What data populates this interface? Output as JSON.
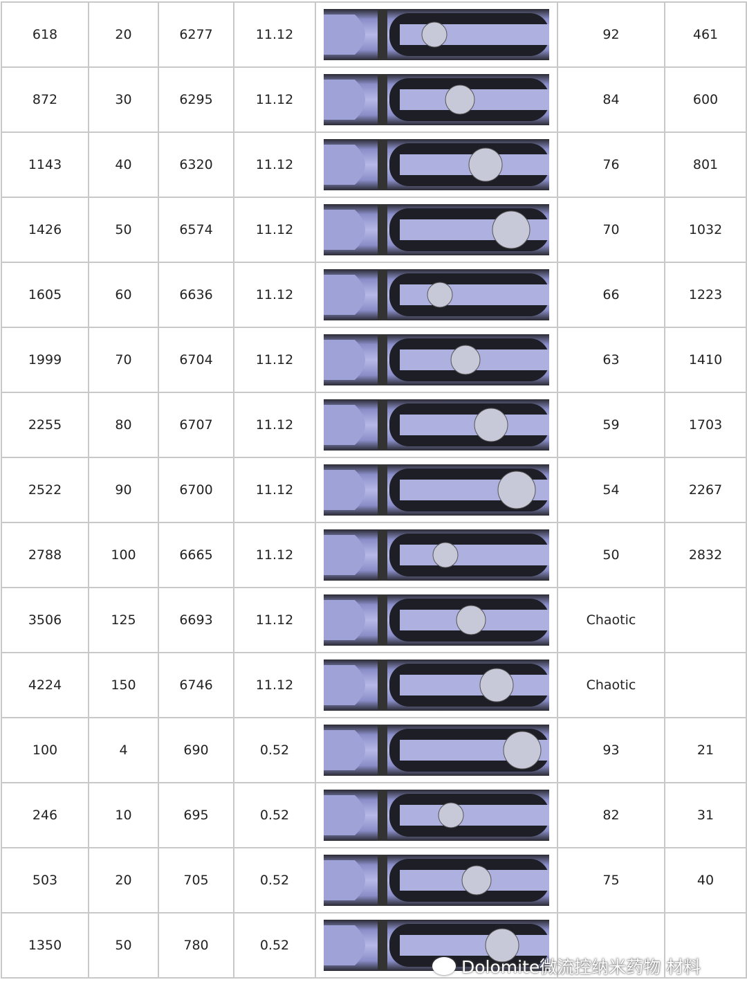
{
  "table": {
    "rows": [
      [
        "618",
        "20",
        "6277",
        "11.12",
        "92",
        "461"
      ],
      [
        "872",
        "30",
        "6295",
        "11.12",
        "84",
        "600"
      ],
      [
        "1143",
        "40",
        "6320",
        "11.12",
        "76",
        "801"
      ],
      [
        "1426",
        "50",
        "6574",
        "11.12",
        "70",
        "1032"
      ],
      [
        "1605",
        "60",
        "6636",
        "11.12",
        "66",
        "1223"
      ],
      [
        "1999",
        "70",
        "6704",
        "11.12",
        "63",
        "1410"
      ],
      [
        "2255",
        "80",
        "6707",
        "11.12",
        "59",
        "1703"
      ],
      [
        "2522",
        "90",
        "6700",
        "11.12",
        "54",
        "2267"
      ],
      [
        "2788",
        "100",
        "6665",
        "11.12",
        "50",
        "2832"
      ],
      [
        "3506",
        "125",
        "6693",
        "11.12",
        "Chaotic",
        null
      ],
      [
        "4224",
        "150",
        "6746",
        "11.12",
        "Chaotic",
        null
      ],
      [
        "100",
        "4",
        "690",
        "0.52",
        "93",
        "21"
      ],
      [
        "246",
        "10",
        "695",
        "0.52",
        "82",
        "31"
      ],
      [
        "503",
        "20",
        "705",
        "0.52",
        "75",
        "40"
      ],
      [
        "1350",
        "50",
        "780",
        "0.52",
        null,
        null
      ]
    ]
  },
  "watermark": "Dolomite微流控纳米药物 材料"
}
